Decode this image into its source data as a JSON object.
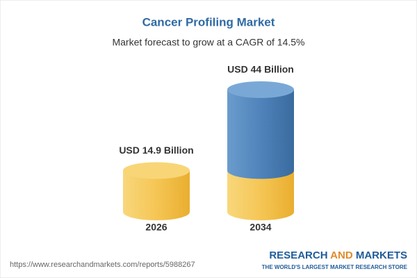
{
  "chart_data": {
    "type": "bar",
    "title": "Cancer Profiling Market",
    "subtitle": "Market forecast to grow at a CAGR of 14.5%",
    "categories": [
      "2026",
      "2034"
    ],
    "values": [
      14.9,
      44
    ],
    "value_labels": [
      "USD 14.9 Billion",
      "USD 44 Billion"
    ],
    "colors": [
      "#f3c14e",
      "#4a7fb5"
    ]
  },
  "footer": {
    "url": "https://www.researchandmarkets.com/reports/5988267",
    "brand": [
      "RESEARCH",
      "AND",
      "MARKETS"
    ],
    "tagline": "THE WORLD'S LARGEST MARKET RESEARCH STORE"
  }
}
